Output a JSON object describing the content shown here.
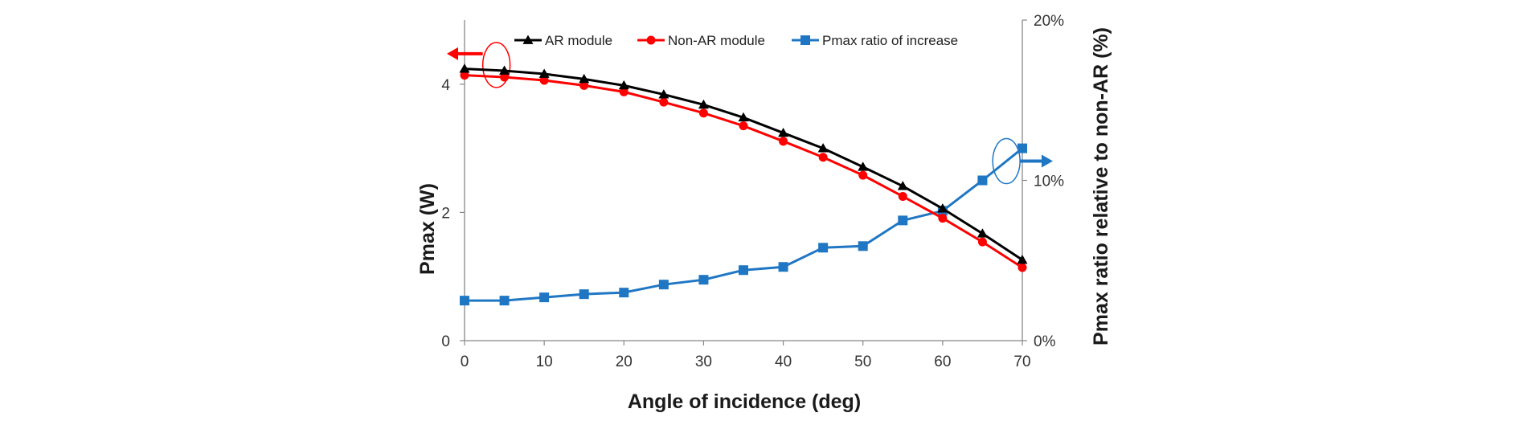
{
  "chart_data": {
    "type": "line",
    "title": "",
    "xlabel": "Angle of incidence (deg)",
    "ylabel": "Pmax (W)",
    "y2label": "Pmax ratio relative to non-AR (%)",
    "xlim": [
      0,
      70
    ],
    "ylim": [
      0,
      5
    ],
    "y2lim": [
      0,
      20
    ],
    "x_ticks": [
      0,
      10,
      20,
      30,
      40,
      50,
      60,
      70
    ],
    "y_ticks": [
      0,
      2,
      4
    ],
    "y2_ticks": [
      0,
      10,
      20
    ],
    "y2_tick_labels": [
      "0%",
      "10%",
      "20%"
    ],
    "grid": false,
    "legend_position": "top",
    "x": [
      0,
      5,
      10,
      15,
      20,
      25,
      30,
      35,
      40,
      45,
      50,
      55,
      60,
      65,
      70
    ],
    "series": [
      {
        "name": "AR module",
        "axis": "left",
        "marker": "triangle",
        "color": "#000000",
        "values": [
          4.24,
          4.21,
          4.16,
          4.08,
          3.98,
          3.84,
          3.68,
          3.48,
          3.24,
          3.0,
          2.71,
          2.41,
          2.06,
          1.67,
          1.26
        ]
      },
      {
        "name": "Non-AR module",
        "axis": "left",
        "marker": "circle",
        "color": "#ff0000",
        "values": [
          4.14,
          4.11,
          4.06,
          3.98,
          3.88,
          3.72,
          3.55,
          3.35,
          3.11,
          2.86,
          2.58,
          2.25,
          1.91,
          1.54,
          1.14
        ]
      },
      {
        "name": "Pmax ratio of increase",
        "axis": "right",
        "marker": "square",
        "color": "#1f77c4",
        "values": [
          2.5,
          2.5,
          2.7,
          2.9,
          3.0,
          3.5,
          3.8,
          4.4,
          4.6,
          5.8,
          5.9,
          7.5,
          8.1,
          10.0,
          12.0
        ]
      }
    ],
    "annotations": [
      {
        "type": "ellipse-arrow",
        "direction": "left",
        "color": "#ff0000",
        "axis": "left",
        "x": 4,
        "y": 4.3
      },
      {
        "type": "ellipse-arrow",
        "direction": "right",
        "color": "#1f77c4",
        "axis": "right",
        "x": 68,
        "y": 11.2
      }
    ]
  }
}
